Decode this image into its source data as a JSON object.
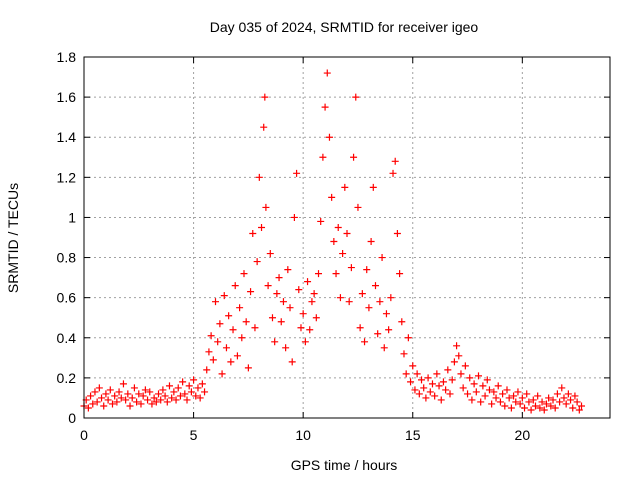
{
  "chart_data": {
    "type": "scatter",
    "title": "Day 035 of 2024, SRMTID for receiver igeo",
    "xlabel": "GPS time / hours",
    "ylabel": "SRMTID / TECUs",
    "xlim": [
      0,
      24
    ],
    "ylim": [
      0,
      1.8
    ],
    "x_ticks": [
      0,
      5,
      10,
      15,
      20
    ],
    "y_ticks": [
      0,
      0.2,
      0.4,
      0.6,
      0.8,
      1,
      1.2,
      1.4,
      1.6,
      1.8
    ],
    "x_tick_labels": [
      "0",
      "5",
      "10",
      "15",
      "20"
    ],
    "y_tick_labels": [
      "0",
      "0.2",
      "0.4",
      "0.6",
      "0.8",
      "1",
      "1.2",
      "1.4",
      "1.6",
      "1.8"
    ],
    "grid": true,
    "marker": "plus",
    "color": "#ff0000",
    "series": [
      {
        "name": "SRMTID",
        "points": [
          [
            0.0,
            0.06
          ],
          [
            0.1,
            0.09
          ],
          [
            0.2,
            0.05
          ],
          [
            0.3,
            0.11
          ],
          [
            0.4,
            0.07
          ],
          [
            0.5,
            0.13
          ],
          [
            0.6,
            0.08
          ],
          [
            0.7,
            0.15
          ],
          [
            0.8,
            0.1
          ],
          [
            0.9,
            0.06
          ],
          [
            1.0,
            0.12
          ],
          [
            1.1,
            0.09
          ],
          [
            1.2,
            0.14
          ],
          [
            1.3,
            0.07
          ],
          [
            1.4,
            0.11
          ],
          [
            1.5,
            0.08
          ],
          [
            1.6,
            0.13
          ],
          [
            1.7,
            0.1
          ],
          [
            1.8,
            0.17
          ],
          [
            1.9,
            0.09
          ],
          [
            2.0,
            0.12
          ],
          [
            2.1,
            0.06
          ],
          [
            2.2,
            0.1
          ],
          [
            2.3,
            0.15
          ],
          [
            2.4,
            0.08
          ],
          [
            2.5,
            0.12
          ],
          [
            2.6,
            0.07
          ],
          [
            2.7,
            0.11
          ],
          [
            2.8,
            0.14
          ],
          [
            2.9,
            0.09
          ],
          [
            3.0,
            0.13
          ],
          [
            3.1,
            0.07
          ],
          [
            3.2,
            0.1
          ],
          [
            3.3,
            0.08
          ],
          [
            3.4,
            0.12
          ],
          [
            3.5,
            0.09
          ],
          [
            3.6,
            0.14
          ],
          [
            3.7,
            0.11
          ],
          [
            3.8,
            0.08
          ],
          [
            3.9,
            0.16
          ],
          [
            4.0,
            0.1
          ],
          [
            4.1,
            0.13
          ],
          [
            4.2,
            0.09
          ],
          [
            4.3,
            0.15
          ],
          [
            4.4,
            0.11
          ],
          [
            4.5,
            0.18
          ],
          [
            4.6,
            0.12
          ],
          [
            4.7,
            0.09
          ],
          [
            4.8,
            0.16
          ],
          [
            4.9,
            0.13
          ],
          [
            5.0,
            0.19
          ],
          [
            5.1,
            0.11
          ],
          [
            5.2,
            0.15
          ],
          [
            5.3,
            0.1
          ],
          [
            5.4,
            0.17
          ],
          [
            5.5,
            0.13
          ],
          [
            5.6,
            0.24
          ],
          [
            5.7,
            0.33
          ],
          [
            5.8,
            0.41
          ],
          [
            5.9,
            0.29
          ],
          [
            6.0,
            0.58
          ],
          [
            6.1,
            0.38
          ],
          [
            6.2,
            0.47
          ],
          [
            6.3,
            0.22
          ],
          [
            6.4,
            0.61
          ],
          [
            6.5,
            0.35
          ],
          [
            6.6,
            0.51
          ],
          [
            6.7,
            0.28
          ],
          [
            6.8,
            0.44
          ],
          [
            6.9,
            0.66
          ],
          [
            7.0,
            0.31
          ],
          [
            7.1,
            0.55
          ],
          [
            7.2,
            0.4
          ],
          [
            7.3,
            0.72
          ],
          [
            7.4,
            0.48
          ],
          [
            7.5,
            0.25
          ],
          [
            7.6,
            0.63
          ],
          [
            7.7,
            0.92
          ],
          [
            7.8,
            0.45
          ],
          [
            7.9,
            0.78
          ],
          [
            8.0,
            1.2
          ],
          [
            8.1,
            0.95
          ],
          [
            8.2,
            1.45
          ],
          [
            8.25,
            1.6
          ],
          [
            8.3,
            1.05
          ],
          [
            8.4,
            0.66
          ],
          [
            8.5,
            0.82
          ],
          [
            8.6,
            0.5
          ],
          [
            8.7,
            0.38
          ],
          [
            8.8,
            0.62
          ],
          [
            8.9,
            0.7
          ],
          [
            9.0,
            0.48
          ],
          [
            9.1,
            0.58
          ],
          [
            9.2,
            0.35
          ],
          [
            9.3,
            0.74
          ],
          [
            9.4,
            0.55
          ],
          [
            9.5,
            0.28
          ],
          [
            9.6,
            1.0
          ],
          [
            9.7,
            1.22
          ],
          [
            9.8,
            0.64
          ],
          [
            9.9,
            0.45
          ],
          [
            10.0,
            0.52
          ],
          [
            10.1,
            0.38
          ],
          [
            10.2,
            0.68
          ],
          [
            10.3,
            0.44
          ],
          [
            10.4,
            0.58
          ],
          [
            10.5,
            0.62
          ],
          [
            10.6,
            0.5
          ],
          [
            10.7,
            0.72
          ],
          [
            10.8,
            0.98
          ],
          [
            10.9,
            1.3
          ],
          [
            11.0,
            1.55
          ],
          [
            11.1,
            1.72
          ],
          [
            11.2,
            1.4
          ],
          [
            11.3,
            1.1
          ],
          [
            11.4,
            0.88
          ],
          [
            11.5,
            0.72
          ],
          [
            11.6,
            0.95
          ],
          [
            11.7,
            0.6
          ],
          [
            11.8,
            0.82
          ],
          [
            11.9,
            1.15
          ],
          [
            12.0,
            0.92
          ],
          [
            12.1,
            0.58
          ],
          [
            12.2,
            0.75
          ],
          [
            12.3,
            1.3
          ],
          [
            12.4,
            1.6
          ],
          [
            12.5,
            1.05
          ],
          [
            12.6,
            0.45
          ],
          [
            12.7,
            0.62
          ],
          [
            12.8,
            0.38
          ],
          [
            12.9,
            0.74
          ],
          [
            13.0,
            0.55
          ],
          [
            13.1,
            0.88
          ],
          [
            13.2,
            1.15
          ],
          [
            13.3,
            0.66
          ],
          [
            13.4,
            0.42
          ],
          [
            13.5,
            0.58
          ],
          [
            13.6,
            0.8
          ],
          [
            13.7,
            0.35
          ],
          [
            13.8,
            0.52
          ],
          [
            13.9,
            0.44
          ],
          [
            14.0,
            0.6
          ],
          [
            14.1,
            1.22
          ],
          [
            14.2,
            1.28
          ],
          [
            14.3,
            0.92
          ],
          [
            14.4,
            0.72
          ],
          [
            14.5,
            0.48
          ],
          [
            14.6,
            0.32
          ],
          [
            14.7,
            0.22
          ],
          [
            14.8,
            0.4
          ],
          [
            14.9,
            0.18
          ],
          [
            15.0,
            0.26
          ],
          [
            15.1,
            0.14
          ],
          [
            15.2,
            0.22
          ],
          [
            15.3,
            0.12
          ],
          [
            15.4,
            0.19
          ],
          [
            15.5,
            0.15
          ],
          [
            15.6,
            0.1
          ],
          [
            15.7,
            0.2
          ],
          [
            15.8,
            0.13
          ],
          [
            15.9,
            0.17
          ],
          [
            16.0,
            0.11
          ],
          [
            16.1,
            0.22
          ],
          [
            16.2,
            0.16
          ],
          [
            16.3,
            0.09
          ],
          [
            16.4,
            0.18
          ],
          [
            16.5,
            0.14
          ],
          [
            16.6,
            0.24
          ],
          [
            16.7,
            0.12
          ],
          [
            16.8,
            0.19
          ],
          [
            16.9,
            0.28
          ],
          [
            17.0,
            0.36
          ],
          [
            17.1,
            0.31
          ],
          [
            17.2,
            0.22
          ],
          [
            17.3,
            0.15
          ],
          [
            17.4,
            0.26
          ],
          [
            17.5,
            0.12
          ],
          [
            17.6,
            0.2
          ],
          [
            17.7,
            0.09
          ],
          [
            17.8,
            0.17
          ],
          [
            17.9,
            0.13
          ],
          [
            18.0,
            0.21
          ],
          [
            18.1,
            0.08
          ],
          [
            18.2,
            0.16
          ],
          [
            18.3,
            0.11
          ],
          [
            18.4,
            0.19
          ],
          [
            18.5,
            0.14
          ],
          [
            18.6,
            0.07
          ],
          [
            18.7,
            0.13
          ],
          [
            18.8,
            0.1
          ],
          [
            18.9,
            0.16
          ],
          [
            19.0,
            0.08
          ],
          [
            19.1,
            0.12
          ],
          [
            19.2,
            0.06
          ],
          [
            19.3,
            0.14
          ],
          [
            19.4,
            0.1
          ],
          [
            19.5,
            0.05
          ],
          [
            19.6,
            0.11
          ],
          [
            19.7,
            0.08
          ],
          [
            19.8,
            0.13
          ],
          [
            19.9,
            0.07
          ],
          [
            20.0,
            0.1
          ],
          [
            20.1,
            0.05
          ],
          [
            20.2,
            0.12
          ],
          [
            20.3,
            0.08
          ],
          [
            20.4,
            0.04
          ],
          [
            20.5,
            0.09
          ],
          [
            20.6,
            0.06
          ],
          [
            20.7,
            0.11
          ],
          [
            20.8,
            0.05
          ],
          [
            20.9,
            0.08
          ],
          [
            21.0,
            0.04
          ],
          [
            21.1,
            0.07
          ],
          [
            21.2,
            0.1
          ],
          [
            21.3,
            0.06
          ],
          [
            21.4,
            0.09
          ],
          [
            21.5,
            0.05
          ],
          [
            21.6,
            0.12
          ],
          [
            21.7,
            0.08
          ],
          [
            21.8,
            0.15
          ],
          [
            21.9,
            0.1
          ],
          [
            22.0,
            0.07
          ],
          [
            22.1,
            0.12
          ],
          [
            22.2,
            0.09
          ],
          [
            22.3,
            0.05
          ],
          [
            22.4,
            0.11
          ],
          [
            22.5,
            0.08
          ],
          [
            22.6,
            0.04
          ],
          [
            22.7,
            0.06
          ]
        ]
      }
    ]
  }
}
